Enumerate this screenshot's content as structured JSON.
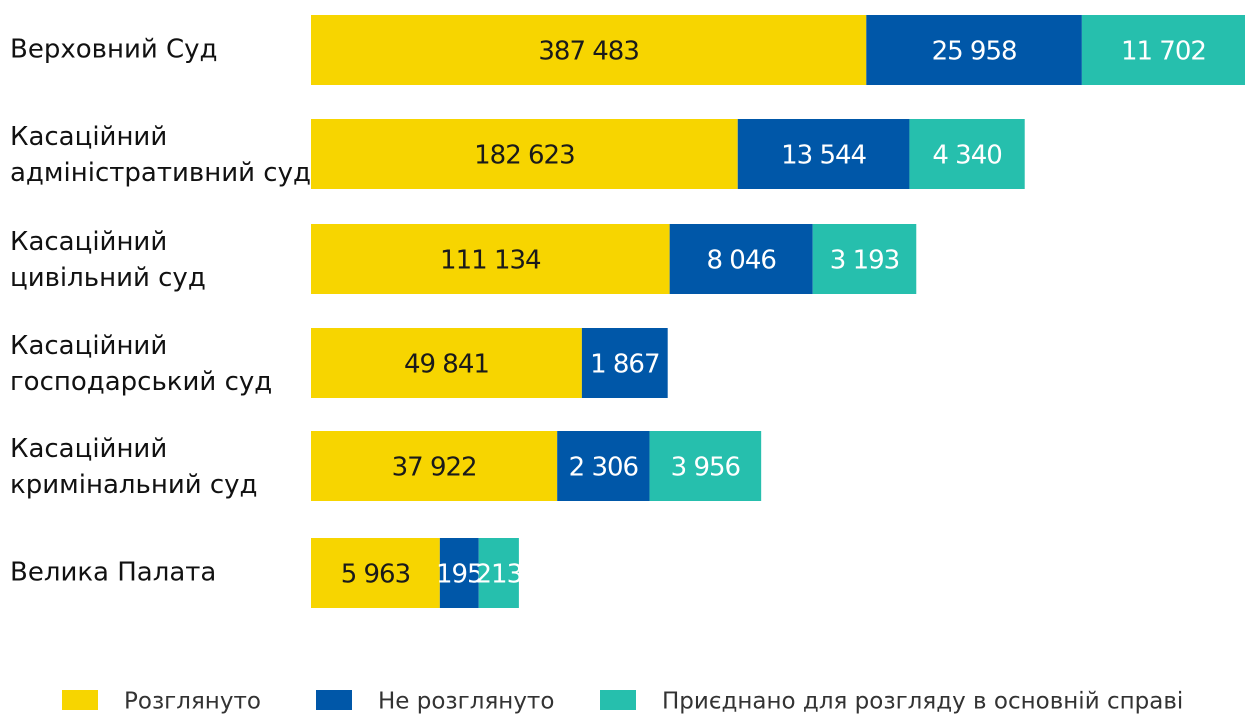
{
  "chart_data": {
    "type": "bar",
    "orientation": "horizontal",
    "stacked": true,
    "categories": [
      "Верховний Суд",
      "Касаційний адміністративний суд",
      "Касаційний цивільний суд",
      "Касаційний господарський суд",
      "Касаційний кримінальний суд",
      "Велика Палата"
    ],
    "series": [
      {
        "name": "Розглянуто",
        "color": "#f7d500",
        "values": [
          387483,
          182623,
          111134,
          49841,
          37922,
          5963
        ],
        "value_labels": [
          "387 483",
          "182 623",
          "111 134",
          "49 841",
          "37 922",
          "5 963"
        ]
      },
      {
        "name": "Не розглянуто",
        "color": "#0057a8",
        "values": [
          25958,
          13544,
          8046,
          1867,
          2306,
          195
        ],
        "value_labels": [
          "25 958",
          "13 544",
          "8 046",
          "1 867",
          "2 306",
          "195"
        ]
      },
      {
        "name": "Приєднано для розгляду в основній справі",
        "color": "#26bfad",
        "values": [
          11702,
          4340,
          3193,
          null,
          3956,
          213
        ],
        "value_labels": [
          "11 702",
          "4 340",
          "3 193",
          null,
          "3 956",
          "213"
        ]
      }
    ],
    "legend": "bottom"
  }
}
